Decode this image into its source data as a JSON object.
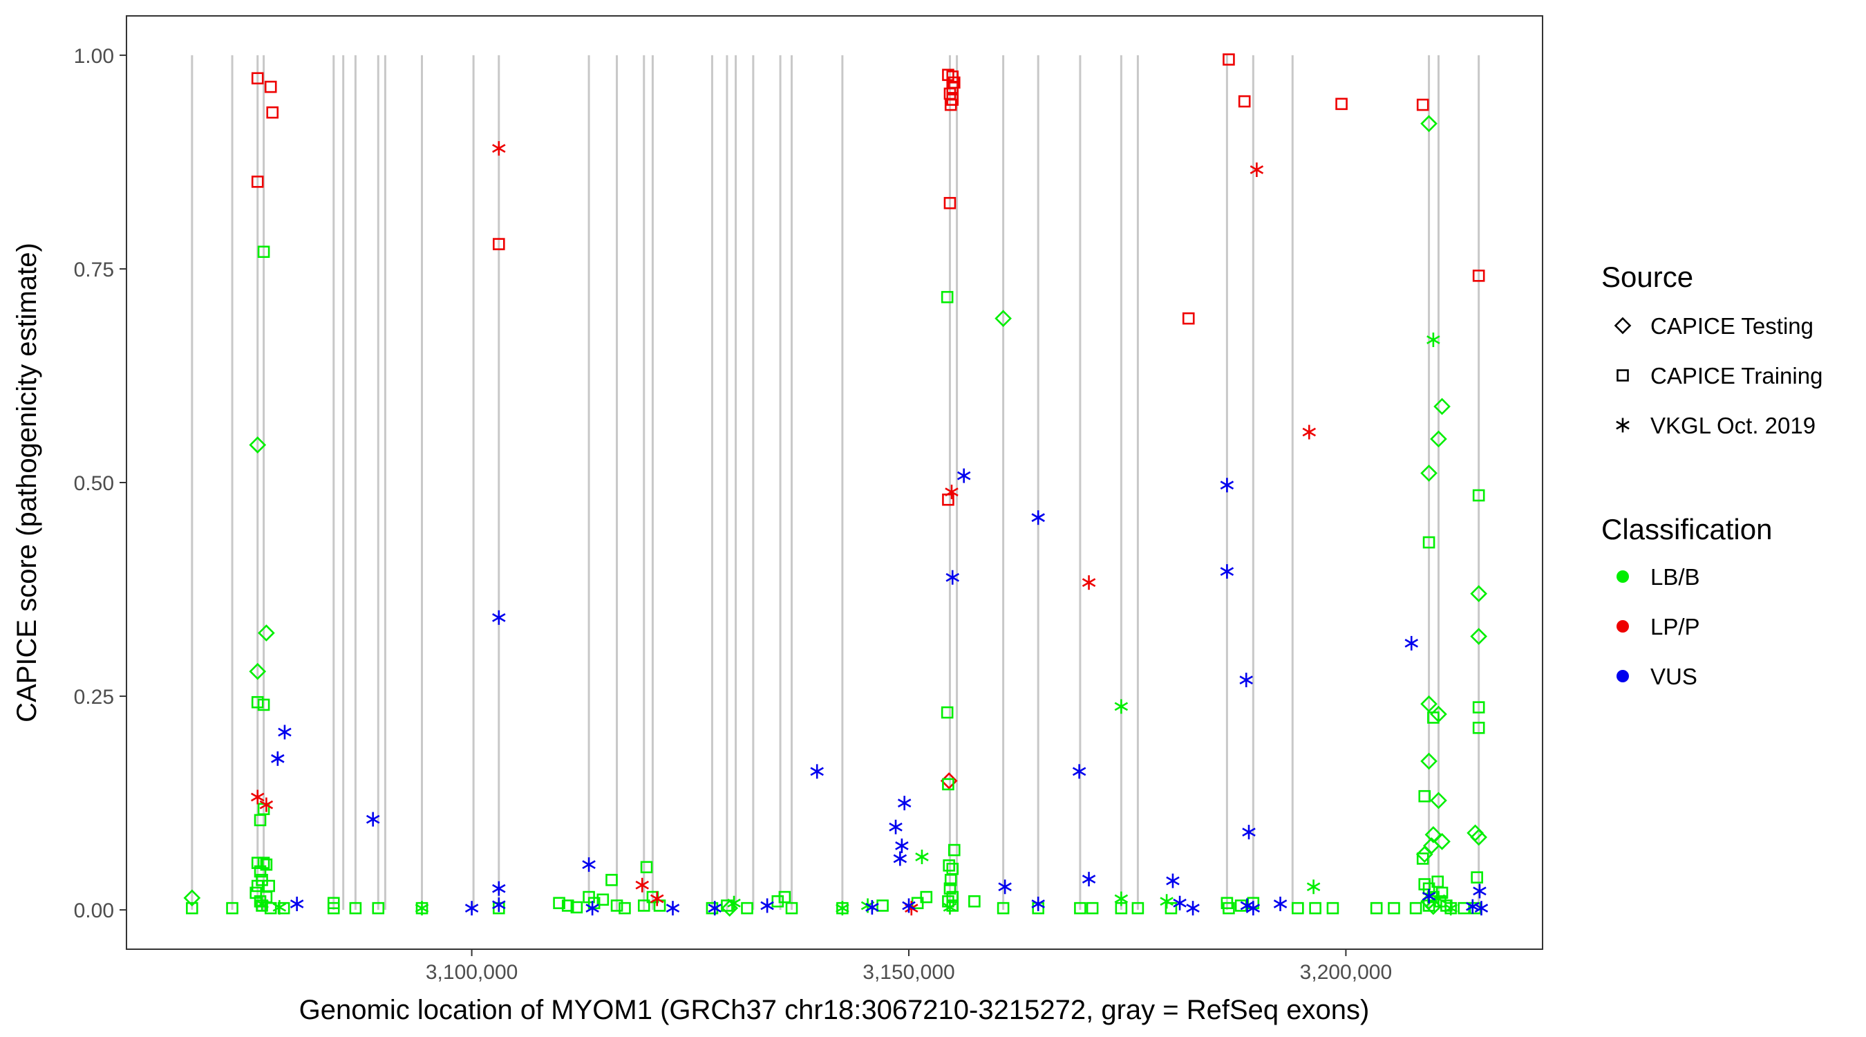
{
  "chart_data": {
    "type": "scatter",
    "title": "",
    "xlabel": "Genomic location of MYOM1 (GRCh37 chr18:3067210-3215272, gray = RefSeq exons)",
    "ylabel": "CAPICE score (pathogenicity estimate)",
    "xlim": [
      3060500,
      3222500
    ],
    "ylim": [
      -0.046,
      1.046
    ],
    "x_ticks": [
      3100000,
      3150000,
      3200000
    ],
    "x_tick_labels": [
      "3,100,000",
      "3,150,000",
      "3,200,000"
    ],
    "y_ticks": [
      0,
      0.25,
      0.5,
      0.75,
      1.0
    ],
    "y_tick_labels": [
      "0.00",
      "0.25",
      "0.50",
      "0.75",
      "1.00"
    ],
    "exons": [
      3068000,
      3072600,
      3075500,
      3076200,
      3084200,
      3085300,
      3086700,
      3089300,
      3090100,
      3094300,
      3100200,
      3103100,
      3113400,
      3116600,
      3119700,
      3120700,
      3127500,
      3129200,
      3130200,
      3132200,
      3135300,
      3136600,
      3142400,
      3154700,
      3155500,
      3160800,
      3164800,
      3169600,
      3174300,
      3176200,
      3186400,
      3189400,
      3193900,
      3209500,
      3210600,
      3215200
    ],
    "legend": {
      "source_title": "Source",
      "source_items": [
        {
          "label": "CAPICE Testing",
          "shape": "diamond"
        },
        {
          "label": "CAPICE Training",
          "shape": "square"
        },
        {
          "label": "VKGL Oct. 2019",
          "shape": "asterisk"
        }
      ],
      "class_title": "Classification",
      "class_items": [
        {
          "label": "LB/B",
          "color": "#00ee00"
        },
        {
          "label": "LP/P",
          "color": "#ee0000"
        },
        {
          "label": "VUS",
          "color": "#0000ee"
        }
      ]
    },
    "series": [
      {
        "name": "CAPICE Testing LB/B",
        "shape": "diamond",
        "color": "#00ee00",
        "points": [
          [
            3068000,
            0.014
          ],
          [
            3075500,
            0.544
          ],
          [
            3075500,
            0.279
          ],
          [
            3076500,
            0.324
          ],
          [
            3129500,
            0.002
          ],
          [
            3160800,
            0.692
          ],
          [
            3209500,
            0.92
          ],
          [
            3211000,
            0.589
          ],
          [
            3210600,
            0.551
          ],
          [
            3209500,
            0.511
          ],
          [
            3215200,
            0.37
          ],
          [
            3215200,
            0.32
          ],
          [
            3209500,
            0.241
          ],
          [
            3210600,
            0.229
          ],
          [
            3209500,
            0.174
          ],
          [
            3210600,
            0.128
          ],
          [
            3211000,
            0.08
          ],
          [
            3210000,
            0.088
          ],
          [
            3214800,
            0.09
          ],
          [
            3215200,
            0.085
          ],
          [
            3209000,
            0.065
          ],
          [
            3209800,
            0.075
          ],
          [
            3209500,
            0.01
          ],
          [
            3210000,
            0.004
          ]
        ]
      },
      {
        "name": "CAPICE Testing LP/P",
        "shape": "diamond",
        "color": "#ee0000",
        "points": [
          [
            3154600,
            0.151
          ]
        ]
      },
      {
        "name": "CAPICE Training LB/B",
        "shape": "square",
        "color": "#00ee00",
        "points": [
          [
            3068000,
            0.002
          ],
          [
            3072600,
            0.002
          ],
          [
            3075500,
            0.243
          ],
          [
            3076200,
            0.24
          ],
          [
            3076200,
            0.77
          ],
          [
            3076200,
            0.118
          ],
          [
            3075800,
            0.105
          ],
          [
            3075500,
            0.055
          ],
          [
            3076200,
            0.055
          ],
          [
            3076500,
            0.053
          ],
          [
            3075800,
            0.045
          ],
          [
            3076000,
            0.035
          ],
          [
            3075500,
            0.028
          ],
          [
            3076800,
            0.028
          ],
          [
            3075300,
            0.02
          ],
          [
            3076500,
            0.015
          ],
          [
            3075800,
            0.01
          ],
          [
            3076000,
            0.005
          ],
          [
            3077000,
            0.002
          ],
          [
            3078500,
            0.002
          ],
          [
            3084200,
            0.008
          ],
          [
            3084200,
            0.002
          ],
          [
            3086700,
            0.002
          ],
          [
            3089300,
            0.002
          ],
          [
            3094300,
            0.002
          ],
          [
            3103100,
            0.002
          ],
          [
            3110000,
            0.008
          ],
          [
            3111000,
            0.005
          ],
          [
            3112000,
            0.003
          ],
          [
            3113400,
            0.015
          ],
          [
            3114000,
            0.008
          ],
          [
            3115000,
            0.012
          ],
          [
            3116000,
            0.035
          ],
          [
            3116600,
            0.005
          ],
          [
            3117500,
            0.002
          ],
          [
            3119700,
            0.005
          ],
          [
            3120000,
            0.05
          ],
          [
            3120700,
            0.015
          ],
          [
            3121500,
            0.005
          ],
          [
            3127500,
            0.002
          ],
          [
            3129200,
            0.005
          ],
          [
            3131500,
            0.002
          ],
          [
            3135000,
            0.01
          ],
          [
            3135800,
            0.015
          ],
          [
            3136600,
            0.002
          ],
          [
            3142400,
            0.002
          ],
          [
            3147000,
            0.005
          ],
          [
            3151000,
            0.008
          ],
          [
            3152000,
            0.015
          ],
          [
            3154400,
            0.717
          ],
          [
            3154400,
            0.231
          ],
          [
            3154500,
            0.147
          ],
          [
            3154600,
            0.052
          ],
          [
            3155000,
            0.048
          ],
          [
            3155200,
            0.07
          ],
          [
            3154800,
            0.035
          ],
          [
            3154700,
            0.025
          ],
          [
            3155000,
            0.015
          ],
          [
            3154500,
            0.01
          ],
          [
            3155000,
            0.005
          ],
          [
            3157500,
            0.01
          ],
          [
            3160800,
            0.002
          ],
          [
            3164800,
            0.002
          ],
          [
            3169600,
            0.002
          ],
          [
            3171000,
            0.002
          ],
          [
            3174300,
            0.002
          ],
          [
            3176200,
            0.002
          ],
          [
            3180000,
            0.002
          ],
          [
            3186400,
            0.008
          ],
          [
            3186600,
            0.002
          ],
          [
            3188000,
            0.005
          ],
          [
            3189400,
            0.008
          ],
          [
            3194500,
            0.002
          ],
          [
            3196500,
            0.002
          ],
          [
            3198500,
            0.002
          ],
          [
            3203500,
            0.002
          ],
          [
            3205500,
            0.002
          ],
          [
            3208000,
            0.002
          ],
          [
            3209000,
            0.133
          ],
          [
            3209500,
            0.43
          ],
          [
            3210000,
            0.225
          ],
          [
            3208800,
            0.06
          ],
          [
            3209000,
            0.03
          ],
          [
            3209500,
            0.025
          ],
          [
            3210500,
            0.033
          ],
          [
            3211000,
            0.02
          ],
          [
            3210000,
            0.015
          ],
          [
            3210800,
            0.01
          ],
          [
            3209500,
            0.005
          ],
          [
            3211500,
            0.005
          ],
          [
            3212000,
            0.002
          ],
          [
            3213500,
            0.002
          ],
          [
            3214800,
            0.002
          ],
          [
            3215200,
            0.485
          ],
          [
            3215200,
            0.237
          ],
          [
            3215200,
            0.213
          ],
          [
            3215000,
            0.038
          ]
        ]
      },
      {
        "name": "CAPICE Training LP/P",
        "shape": "square",
        "color": "#ee0000",
        "points": [
          [
            3075500,
            0.973
          ],
          [
            3077000,
            0.963
          ],
          [
            3077200,
            0.933
          ],
          [
            3075500,
            0.852
          ],
          [
            3103100,
            0.779
          ],
          [
            3154500,
            0.977
          ],
          [
            3155000,
            0.975
          ],
          [
            3155200,
            0.968
          ],
          [
            3155000,
            0.962
          ],
          [
            3154700,
            0.955
          ],
          [
            3155000,
            0.948
          ],
          [
            3154800,
            0.942
          ],
          [
            3154700,
            0.827
          ],
          [
            3154500,
            0.48
          ],
          [
            3182000,
            0.692
          ],
          [
            3186600,
            0.995
          ],
          [
            3188400,
            0.946
          ],
          [
            3199500,
            0.943
          ],
          [
            3208800,
            0.942
          ],
          [
            3215200,
            0.742
          ]
        ]
      },
      {
        "name": "VKGL Oct. 2019 LB/B",
        "shape": "asterisk",
        "color": "#00ee00",
        "points": [
          [
            3076000,
            0.007
          ],
          [
            3078000,
            0.003
          ],
          [
            3094300,
            0.002
          ],
          [
            3130000,
            0.008
          ],
          [
            3142400,
            0.002
          ],
          [
            3145300,
            0.005
          ],
          [
            3151500,
            0.062
          ],
          [
            3154700,
            0.003
          ],
          [
            3174300,
            0.238
          ],
          [
            3174300,
            0.013
          ],
          [
            3179500,
            0.01
          ],
          [
            3196300,
            0.027
          ],
          [
            3210000,
            0.667
          ],
          [
            3210600,
            0.013
          ],
          [
            3212000,
            0.002
          ]
        ]
      },
      {
        "name": "VKGL Oct. 2019 LP/P",
        "shape": "asterisk",
        "color": "#ee0000",
        "points": [
          [
            3075500,
            0.132
          ],
          [
            3076500,
            0.123
          ],
          [
            3103100,
            0.891
          ],
          [
            3119500,
            0.029
          ],
          [
            3121200,
            0.013
          ],
          [
            3150300,
            0.002
          ],
          [
            3154900,
            0.489
          ],
          [
            3170600,
            0.383
          ],
          [
            3189800,
            0.866
          ],
          [
            3195800,
            0.559
          ]
        ]
      },
      {
        "name": "VKGL Oct. 2019 VUS",
        "shape": "asterisk",
        "color": "#0000ee",
        "points": [
          [
            3077800,
            0.177
          ],
          [
            3078600,
            0.208
          ],
          [
            3080000,
            0.007
          ],
          [
            3088700,
            0.106
          ],
          [
            3100000,
            0.002
          ],
          [
            3103100,
            0.342
          ],
          [
            3103100,
            0.025
          ],
          [
            3103100,
            0.006
          ],
          [
            3113400,
            0.053
          ],
          [
            3113800,
            0.002
          ],
          [
            3123000,
            0.002
          ],
          [
            3127800,
            0.002
          ],
          [
            3133800,
            0.005
          ],
          [
            3139500,
            0.162
          ],
          [
            3145800,
            0.003
          ],
          [
            3148500,
            0.097
          ],
          [
            3149000,
            0.06
          ],
          [
            3149200,
            0.075
          ],
          [
            3149500,
            0.125
          ],
          [
            3150000,
            0.005
          ],
          [
            3155000,
            0.389
          ],
          [
            3156300,
            0.508
          ],
          [
            3161000,
            0.027
          ],
          [
            3164800,
            0.459
          ],
          [
            3164800,
            0.007
          ],
          [
            3169500,
            0.162
          ],
          [
            3170600,
            0.036
          ],
          [
            3180200,
            0.034
          ],
          [
            3181000,
            0.008
          ],
          [
            3182500,
            0.002
          ],
          [
            3186400,
            0.497
          ],
          [
            3186400,
            0.396
          ],
          [
            3188600,
            0.269
          ],
          [
            3188900,
            0.091
          ],
          [
            3188700,
            0.005
          ],
          [
            3189400,
            0.002
          ],
          [
            3192500,
            0.007
          ],
          [
            3207500,
            0.312
          ],
          [
            3209500,
            0.016
          ],
          [
            3214500,
            0.004
          ],
          [
            3215300,
            0.022
          ],
          [
            3215500,
            0.002
          ]
        ]
      }
    ]
  }
}
